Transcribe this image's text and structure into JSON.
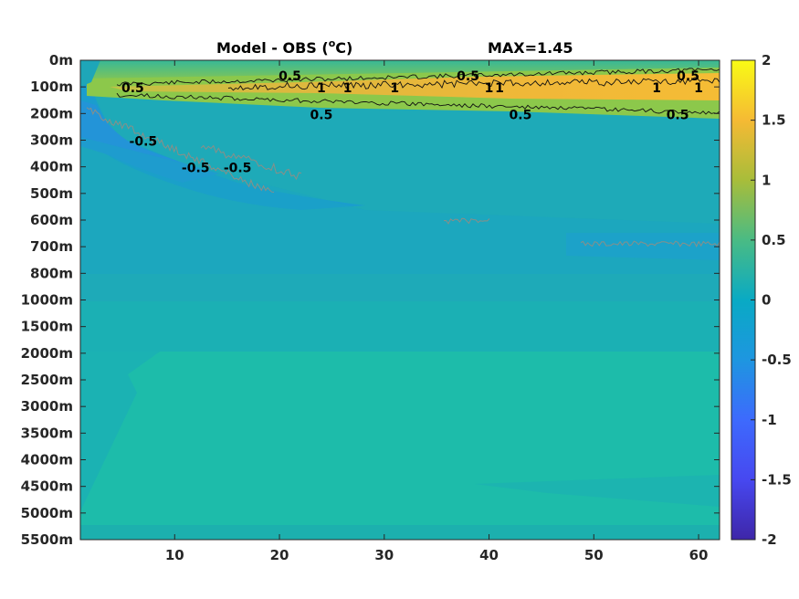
{
  "chart_data": {
    "type": "heatmap",
    "title_left": "Model - OBS (",
    "title_unit_sup": "o",
    "title_unit_end": "C)",
    "title_right": "MAX=1.45",
    "x_ticks": [
      "10",
      "20",
      "30",
      "40",
      "50",
      "60"
    ],
    "x_tick_values": [
      10,
      20,
      30,
      40,
      50,
      60
    ],
    "xlim": [
      1,
      62
    ],
    "y_ticks": [
      "0m",
      "100m",
      "200m",
      "300m",
      "400m",
      "500m",
      "600m",
      "700m",
      "800m",
      "1000m",
      "1500m",
      "2000m",
      "2500m",
      "3000m",
      "3500m",
      "4000m",
      "4500m",
      "5000m",
      "5500m"
    ],
    "colorbar": {
      "ticks": [
        "2",
        "1.5",
        "1",
        "0.5",
        "0",
        "-0.5",
        "-1",
        "-1.5",
        "-2"
      ],
      "range": [
        -2,
        2
      ],
      "colormap": "parula"
    },
    "contour_labels": [
      {
        "text": "0.5",
        "x": 6,
        "depth": "100m"
      },
      {
        "text": "0.5",
        "x": 21,
        "depth": "0m"
      },
      {
        "text": "1",
        "x": 24,
        "depth": "100m"
      },
      {
        "text": "1",
        "x": 26.5,
        "depth": "100m"
      },
      {
        "text": "1",
        "x": 31,
        "depth": "100m"
      },
      {
        "text": "0.5",
        "x": 24,
        "depth": "200m"
      },
      {
        "text": "0.5",
        "x": 38,
        "depth": "0m"
      },
      {
        "text": "1",
        "x": 41,
        "depth": "100m"
      },
      {
        "text": "1",
        "x": 40,
        "depth": "100m"
      },
      {
        "text": "0.5",
        "x": 43,
        "depth": "200m"
      },
      {
        "text": "0.5",
        "x": 59,
        "depth": "0m"
      },
      {
        "text": "1",
        "x": 60,
        "depth": "100m"
      },
      {
        "text": "1",
        "x": 56,
        "depth": "100m"
      },
      {
        "text": "0.5",
        "x": 58,
        "depth": "200m"
      },
      {
        "text": "-0.5",
        "x": 7,
        "depth": "300m"
      },
      {
        "text": "-0.5",
        "x": 12,
        "depth": "400m"
      },
      {
        "text": "-0.5",
        "x": 16,
        "depth": "400m"
      }
    ],
    "colors": {
      "warm_band": "#f2b93a",
      "mid_band": "#8cc84b",
      "background": "#1fb0b0",
      "cool_patch": "#2196cf",
      "deep_bg": "#1ebcaa",
      "frame": "#262626"
    }
  }
}
